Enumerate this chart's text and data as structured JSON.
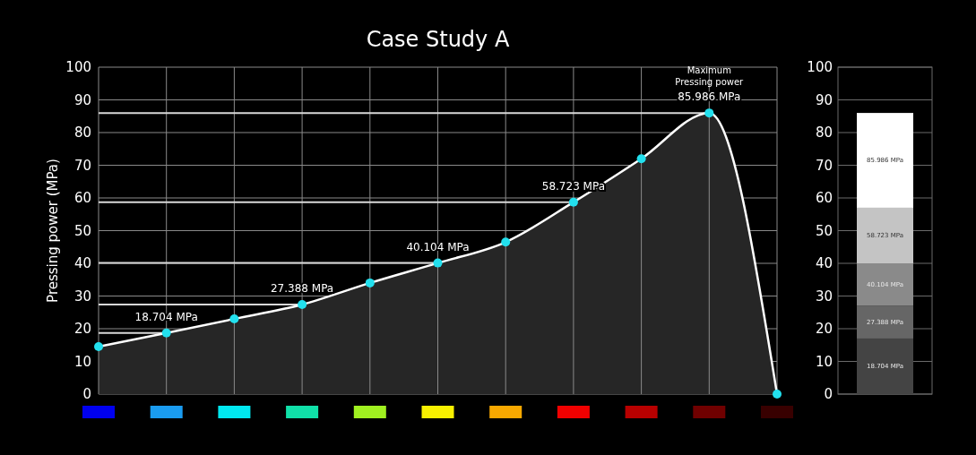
{
  "chart_data": [
    {
      "type": "area",
      "title": "Case Study A",
      "ylabel": "Pressing power (MPa)",
      "categories": [
        null,
        null,
        null,
        null,
        null,
        null,
        null,
        null,
        null,
        null,
        null
      ],
      "series": [
        {
          "color": "#ffffff",
          "values": [
            14.5,
            18.704,
            23,
            27.388,
            34,
            40.104,
            46.5,
            58.723,
            72,
            85.986,
            0
          ],
          "value_labels": [
            null,
            "18.704 MPa",
            null,
            "27.388 MPa",
            null,
            "40.104 MPa",
            null,
            "58.723 MPa",
            null,
            "85.986 MPa",
            null
          ]
        }
      ],
      "ylim": [
        0,
        100
      ],
      "yticks": [
        0,
        10,
        20,
        30,
        40,
        50,
        60,
        70,
        80,
        90,
        100
      ],
      "grid": true,
      "marker": "circle",
      "line_style": "solid",
      "ref_lines": [
        {
          "axis": "y",
          "value": 18.704
        },
        {
          "axis": "y",
          "value": 27.388
        },
        {
          "axis": "y",
          "value": 40.104
        },
        {
          "axis": "y",
          "value": 58.723
        },
        {
          "axis": "y",
          "value": 85.986
        }
      ],
      "annotations": [
        "Maximum Pressing power"
      ]
    },
    {
      "type": "bar",
      "stacked": true,
      "categories": [
        null
      ],
      "series": [
        {
          "color": "#444444",
          "values": [
            17
          ]
        },
        {
          "color": "#666666",
          "values": [
            10
          ]
        },
        {
          "color": "#8a8a8a",
          "values": [
            13
          ]
        },
        {
          "color": "#c4c4c4",
          "values": [
            17
          ]
        },
        {
          "color": "#ffffff",
          "values": [
            29
          ]
        }
      ],
      "annotations": [
        "18.704 MPa",
        "27.388 MPa",
        "40.104 MPa",
        "58.723 MPa",
        "85.986 MPa"
      ],
      "ylim": [
        0,
        100
      ],
      "yticks": [
        0,
        10,
        20,
        30,
        40,
        50,
        60,
        70,
        80,
        90,
        100
      ],
      "grid": "y"
    }
  ]
}
